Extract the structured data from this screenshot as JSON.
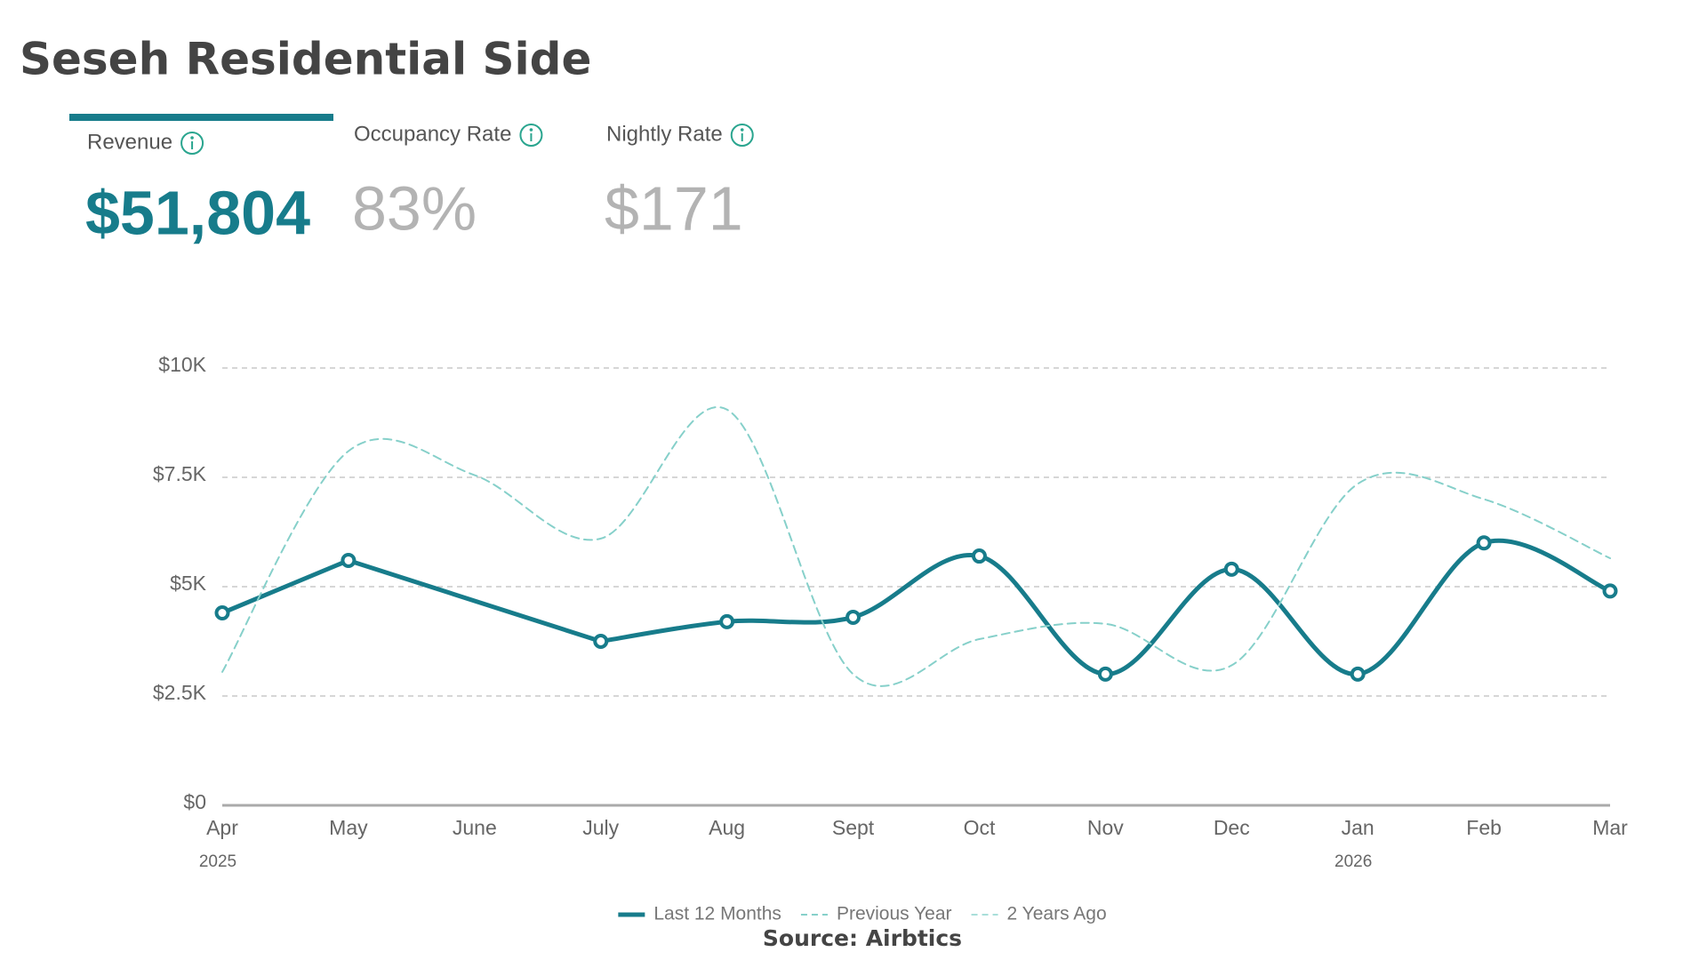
{
  "title": "Seseh Residential Side",
  "kpis": [
    {
      "label": "Revenue",
      "value": "$51,804",
      "active": true
    },
    {
      "label": "Occupancy Rate",
      "value": "83%",
      "active": false
    },
    {
      "label": "Nightly Rate",
      "value": "$171",
      "active": false
    }
  ],
  "chart_data": {
    "type": "line",
    "categories": [
      "Apr",
      "May",
      "June",
      "July",
      "Aug",
      "Sept",
      "Oct",
      "Nov",
      "Dec",
      "Jan",
      "Feb",
      "Mar"
    ],
    "x_sublabels": [
      "2025",
      null,
      null,
      null,
      null,
      null,
      null,
      null,
      null,
      "2026",
      null,
      null
    ],
    "series": [
      {
        "name": "Last 12 Months",
        "color": "#177c8b",
        "dashed": false,
        "markers": true,
        "values": [
          4400,
          5600,
          null,
          3750,
          4200,
          4300,
          5700,
          3000,
          5400,
          3000,
          6000,
          4900
        ]
      },
      {
        "name": "Previous Year",
        "color": "#86d0ca",
        "dashed": true,
        "markers": false,
        "values": [
          3050,
          8100,
          7550,
          6100,
          9050,
          3000,
          3800,
          4150,
          3200,
          7350,
          7000,
          5650
        ]
      },
      {
        "name": "2 Years Ago",
        "color": "#a9dfda",
        "dashed": true,
        "markers": false,
        "values": [
          null,
          null,
          null,
          null,
          null,
          null,
          null,
          null,
          null,
          null,
          null,
          null
        ]
      }
    ],
    "ylim": [
      0,
      10000
    ],
    "yticks": [
      {
        "value": 0,
        "label": "$0"
      },
      {
        "value": 2500,
        "label": "$2.5K"
      },
      {
        "value": 5000,
        "label": "$5K"
      },
      {
        "value": 7500,
        "label": "$7.5K"
      },
      {
        "value": 10000,
        "label": "$10K"
      }
    ],
    "grid": true,
    "smooth": true,
    "connect_gaps": true,
    "legend": "bottom"
  },
  "source": "Source: Airbtics"
}
